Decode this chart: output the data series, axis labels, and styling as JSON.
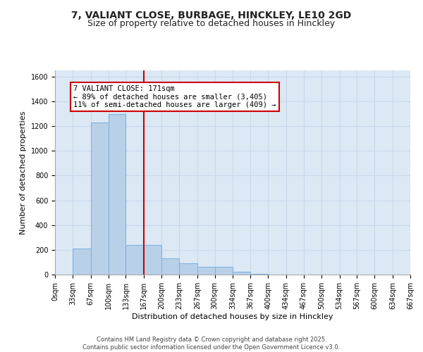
{
  "title1": "7, VALIANT CLOSE, BURBAGE, HINCKLEY, LE10 2GD",
  "title2": "Size of property relative to detached houses in Hinckley",
  "xlabel": "Distribution of detached houses by size in Hinckley",
  "ylabel": "Number of detached properties",
  "bar_edges": [
    0,
    33,
    67,
    100,
    133,
    167,
    200,
    233,
    267,
    300,
    334,
    367,
    400,
    434,
    467,
    500,
    534,
    567,
    600,
    634,
    667
  ],
  "bar_heights": [
    0,
    210,
    1230,
    1300,
    240,
    240,
    130,
    90,
    60,
    60,
    20,
    5,
    0,
    0,
    0,
    0,
    0,
    0,
    0,
    0
  ],
  "bar_color": "#b8d0e8",
  "bar_edgecolor": "#7aafe0",
  "grid_color": "#c8d8ec",
  "bg_color": "#dce8f4",
  "vline_x": 167,
  "vline_color": "#cc0000",
  "annotation_text": "7 VALIANT CLOSE: 171sqm\n← 89% of detached houses are smaller (3,405)\n11% of semi-detached houses are larger (409) →",
  "annotation_box_color": "#cc0000",
  "ylim": [
    0,
    1650
  ],
  "yticks": [
    0,
    200,
    400,
    600,
    800,
    1000,
    1200,
    1400,
    1600
  ],
  "footer_text": "Contains HM Land Registry data © Crown copyright and database right 2025.\nContains public sector information licensed under the Open Government Licence v3.0.",
  "title_fontsize": 10,
  "subtitle_fontsize": 9,
  "tick_label_fontsize": 7,
  "axis_label_fontsize": 8,
  "annotation_fontsize": 7.5
}
